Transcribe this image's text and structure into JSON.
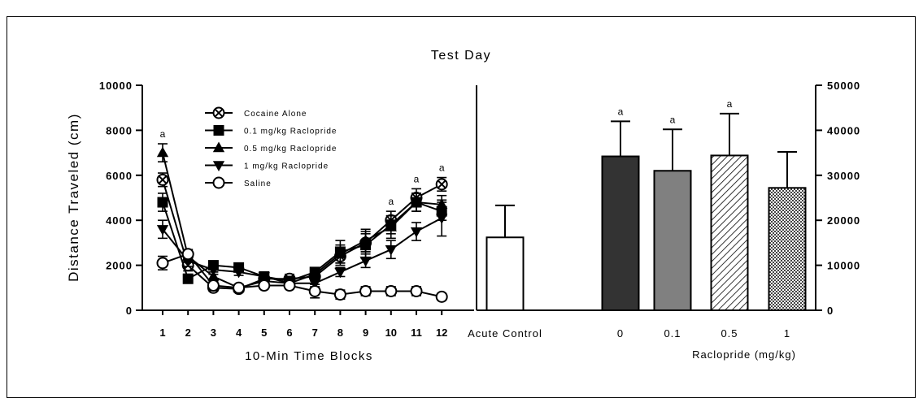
{
  "figure_title": "Test Day",
  "ylabel": "Distance Traveled (cm)",
  "chart_data": [
    {
      "type": "line",
      "xlabel": "10-Min Time Blocks",
      "ylabel": "Distance Traveled (cm)",
      "x": [
        1,
        2,
        3,
        4,
        5,
        6,
        7,
        8,
        9,
        10,
        11,
        12
      ],
      "ylim": [
        0,
        10000
      ],
      "yticks": [
        0,
        2000,
        4000,
        6000,
        8000,
        10000
      ],
      "legend_position": "top-center",
      "series": [
        {
          "name": "Cocaine Alone",
          "marker": "circle-x",
          "values": [
            5800,
            2000,
            1000,
            950,
            1400,
            1400,
            1500,
            2400,
            3000,
            4000,
            5000,
            5600
          ],
          "error": [
            300,
            250,
            150,
            150,
            200,
            200,
            200,
            400,
            400,
            400,
            400,
            300
          ]
        },
        {
          "name": "0.1 mg/kg Raclopride",
          "marker": "square",
          "values": [
            4800,
            1400,
            2000,
            1900,
            1500,
            1300,
            1700,
            2600,
            2900,
            3800,
            4800,
            4400
          ],
          "error": [
            400,
            200,
            150,
            150,
            150,
            150,
            200,
            500,
            600,
            400,
            400,
            400
          ]
        },
        {
          "name": "0.5 mg/kg Raclopride",
          "marker": "triangle-up",
          "values": [
            7000,
            2400,
            1500,
            1000,
            1300,
            1200,
            1600,
            2500,
            3100,
            3700,
            4800,
            4700
          ],
          "error": [
            400,
            200,
            200,
            150,
            150,
            150,
            200,
            400,
            500,
            500,
            400,
            400
          ]
        },
        {
          "name": "1 mg/kg Raclopride",
          "marker": "triangle-down",
          "values": [
            3600,
            2200,
            1800,
            1700,
            1500,
            1200,
            1200,
            1700,
            2200,
            2700,
            3500,
            4100
          ],
          "error": [
            400,
            250,
            200,
            150,
            150,
            150,
            150,
            200,
            300,
            400,
            400,
            800
          ]
        },
        {
          "name": "Saline",
          "marker": "circle-open",
          "values": [
            2100,
            2500,
            1100,
            1000,
            1100,
            1100,
            850,
            700,
            850,
            850,
            850,
            600
          ],
          "error": [
            300,
            200,
            150,
            150,
            150,
            150,
            300,
            200,
            200,
            200,
            200,
            150
          ]
        }
      ],
      "annotations": [
        {
          "x": 1,
          "text": "a"
        },
        {
          "x": 10,
          "text": "a"
        },
        {
          "x": 11,
          "text": "a"
        },
        {
          "x": 12,
          "text": "a"
        }
      ]
    },
    {
      "type": "bar",
      "categories": [
        "Acute Control",
        "0",
        "0.1",
        "0.5",
        "1"
      ],
      "xlabel": "Raclopride (mg/kg)",
      "values": [
        16200,
        34200,
        31000,
        34400,
        27200
      ],
      "error": [
        7100,
        7800,
        9200,
        9300,
        8000
      ],
      "fills": [
        "white",
        "dark",
        "gray",
        "hatched",
        "checkered"
      ],
      "annotations": [
        "",
        "a",
        "a",
        "a",
        ""
      ],
      "ylim": [
        0,
        50000
      ],
      "yticks": [
        0,
        10000,
        20000,
        30000,
        40000,
        50000
      ],
      "y_axis_side": "right"
    }
  ]
}
